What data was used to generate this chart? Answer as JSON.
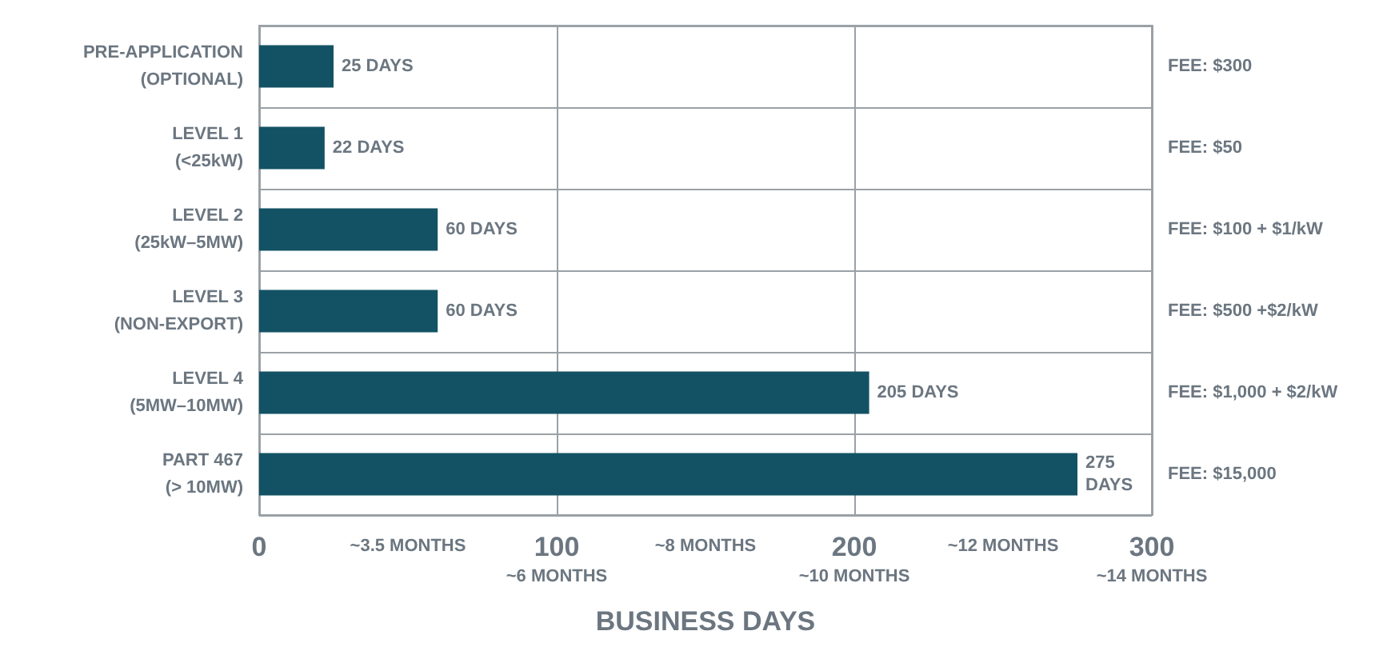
{
  "chart_data": {
    "type": "bar",
    "orientation": "horizontal",
    "xlabel": "BUSINESS DAYS",
    "categories": [
      "PRE-APPLICATION\n(OPTIONAL)",
      "LEVEL 1\n(<25kW)",
      "LEVEL 2\n(25kW–5MW)",
      "LEVEL 3\n(NON-EXPORT)",
      "LEVEL 4\n(5MW–10MW)",
      "PART 467\n(> 10MW)"
    ],
    "values": [
      25,
      22,
      60,
      60,
      205,
      275
    ],
    "value_labels": [
      "25 DAYS",
      "22 DAYS",
      "60 DAYS",
      "60 DAYS",
      "205 DAYS",
      "275\nDAYS"
    ],
    "color": "#135264",
    "xlim": [
      0,
      300
    ],
    "xticks": [
      0,
      100,
      200,
      300
    ],
    "annotations": [
      "FEE: $300",
      "FEE: $50",
      "FEE: $100 + $1/kW",
      "FEE: $500 +$2/kW",
      "FEE: $1,000 + $2/kW",
      "FEE: $15,000",
      "~3.5 MONTHS",
      "~6 MONTHS",
      "~8 MONTHS",
      "~10 MONTHS",
      "~12 MONTHS",
      "~14 MONTHS"
    ],
    "grid": "x"
  }
}
